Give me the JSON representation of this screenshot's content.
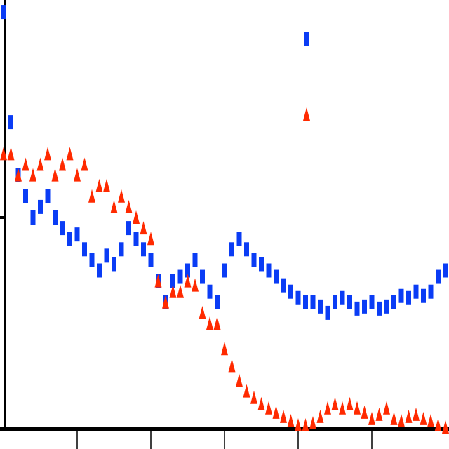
{
  "chart_data": {
    "type": "scatter",
    "x": [
      0,
      0.1,
      0.2,
      0.3,
      0.4,
      0.5,
      0.6,
      0.7,
      0.8,
      0.9,
      1,
      1.1,
      1.2,
      1.3,
      1.4,
      1.5,
      1.6,
      1.7,
      1.8,
      1.9,
      2,
      2.1,
      2.2,
      2.3,
      2.4,
      2.5,
      2.6,
      2.7,
      2.8,
      2.9,
      3,
      3.1,
      3.2,
      3.3,
      3.4,
      3.5,
      3.6,
      3.7,
      3.8,
      3.9,
      4,
      4.1,
      4.2,
      4.3,
      4.4,
      4.5,
      4.6,
      4.7,
      4.8,
      4.9,
      5,
      5.1,
      5.2,
      5.3,
      5.4,
      5.5,
      5.6,
      5.7,
      5.8,
      5.9,
      6
    ],
    "series": [
      {
        "color": "#0a3cf5",
        "marker": "rect",
        "values": [
          1.97,
          1.45,
          1.2,
          1.1,
          1.0,
          1.05,
          1.1,
          1.0,
          0.95,
          0.9,
          0.92,
          0.85,
          0.8,
          0.75,
          0.82,
          0.78,
          0.85,
          0.95,
          0.9,
          0.85,
          0.8,
          0.7,
          0.6,
          0.7,
          0.72,
          0.75,
          0.8,
          0.72,
          0.65,
          0.6,
          0.75,
          0.85,
          0.9,
          0.85,
          0.8,
          0.78,
          0.75,
          0.72,
          0.68,
          0.65,
          0.62,
          0.6,
          0.6,
          0.58,
          0.55,
          0.6,
          0.62,
          0.6,
          0.57,
          0.58,
          0.6,
          0.57,
          0.58,
          0.6,
          0.63,
          0.62,
          0.65,
          0.63,
          0.65,
          0.72,
          0.75
        ]
      },
      {
        "color": "#ff2a00",
        "marker": "triangle",
        "values": [
          1.3,
          1.3,
          1.2,
          1.25,
          1.2,
          1.25,
          1.3,
          1.2,
          1.25,
          1.3,
          1.2,
          1.25,
          1.1,
          1.15,
          1.15,
          1.05,
          1.1,
          1.05,
          1.0,
          0.95,
          0.9,
          0.7,
          0.6,
          0.65,
          0.65,
          0.7,
          0.68,
          0.55,
          0.5,
          0.5,
          0.38,
          0.3,
          0.23,
          0.18,
          0.15,
          0.12,
          0.1,
          0.08,
          0.06,
          0.04,
          0.02,
          0.02,
          0.03,
          0.06,
          0.1,
          0.12,
          0.1,
          0.12,
          0.1,
          0.08,
          0.05,
          0.07,
          0.1,
          0.05,
          0.04,
          0.06,
          0.07,
          0.05,
          0.04,
          0.02,
          0.01
        ]
      }
    ],
    "xlim": [
      0,
      6
    ],
    "ylim": [
      0,
      2
    ],
    "xticks": [
      1,
      2,
      3,
      4,
      5
    ],
    "yticks": [
      1
    ]
  }
}
